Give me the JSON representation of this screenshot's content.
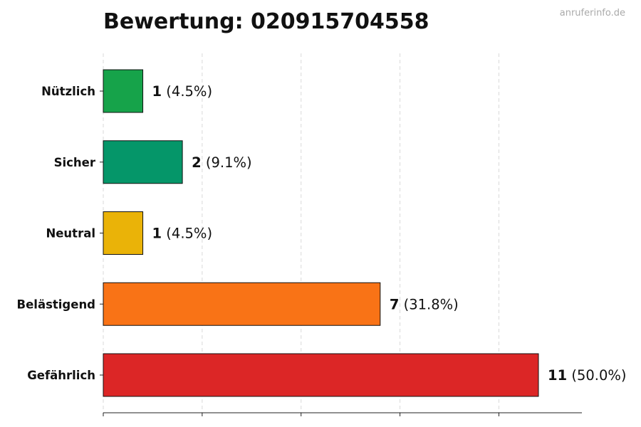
{
  "watermark": "anruferinfo.de",
  "chart_data": {
    "type": "bar",
    "orientation": "horizontal",
    "title": "Bewertung: 020915704558",
    "xlabel": "",
    "ylabel": "",
    "xlim": [
      0,
      11
    ],
    "grid": "vertical dashed",
    "categories": [
      "Nützlich",
      "Sicher",
      "Neutral",
      "Belästigend",
      "Gefährlich"
    ],
    "values": [
      1,
      2,
      1,
      7,
      11
    ],
    "labels": [
      {
        "count": "1",
        "percent": "(4.5%)"
      },
      {
        "count": "2",
        "percent": "(9.1%)"
      },
      {
        "count": "1",
        "percent": "(4.5%)"
      },
      {
        "count": "7",
        "percent": "(31.8%)"
      },
      {
        "count": "11",
        "percent": "(50.0%)"
      }
    ],
    "colors": [
      "#16a34a",
      "#059669",
      "#eab308",
      "#f97316",
      "#dc2626"
    ]
  }
}
